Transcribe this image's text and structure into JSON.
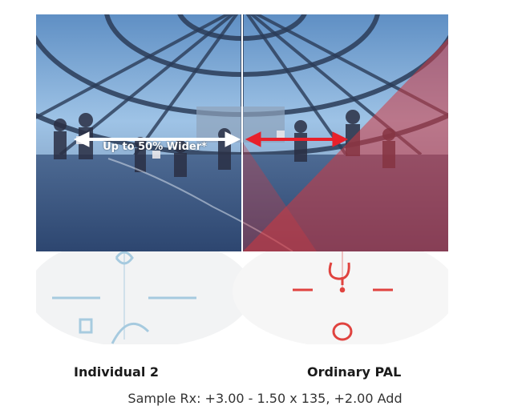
{
  "image": {
    "wider_label": "Up to 50% Wider*",
    "left_caption": "Individual 2",
    "right_caption": "Ordinary PAL",
    "sample_rx": "Sample Rx: +3.00 - 1.50 x 135, +2.00 Add"
  },
  "colors": {
    "white_arrow": "#ffffff",
    "red_arrow": "#e8202a",
    "red_zone": "#d2393f",
    "lens_blue": "#9ec6dd",
    "lens_red": "#e0433f"
  }
}
